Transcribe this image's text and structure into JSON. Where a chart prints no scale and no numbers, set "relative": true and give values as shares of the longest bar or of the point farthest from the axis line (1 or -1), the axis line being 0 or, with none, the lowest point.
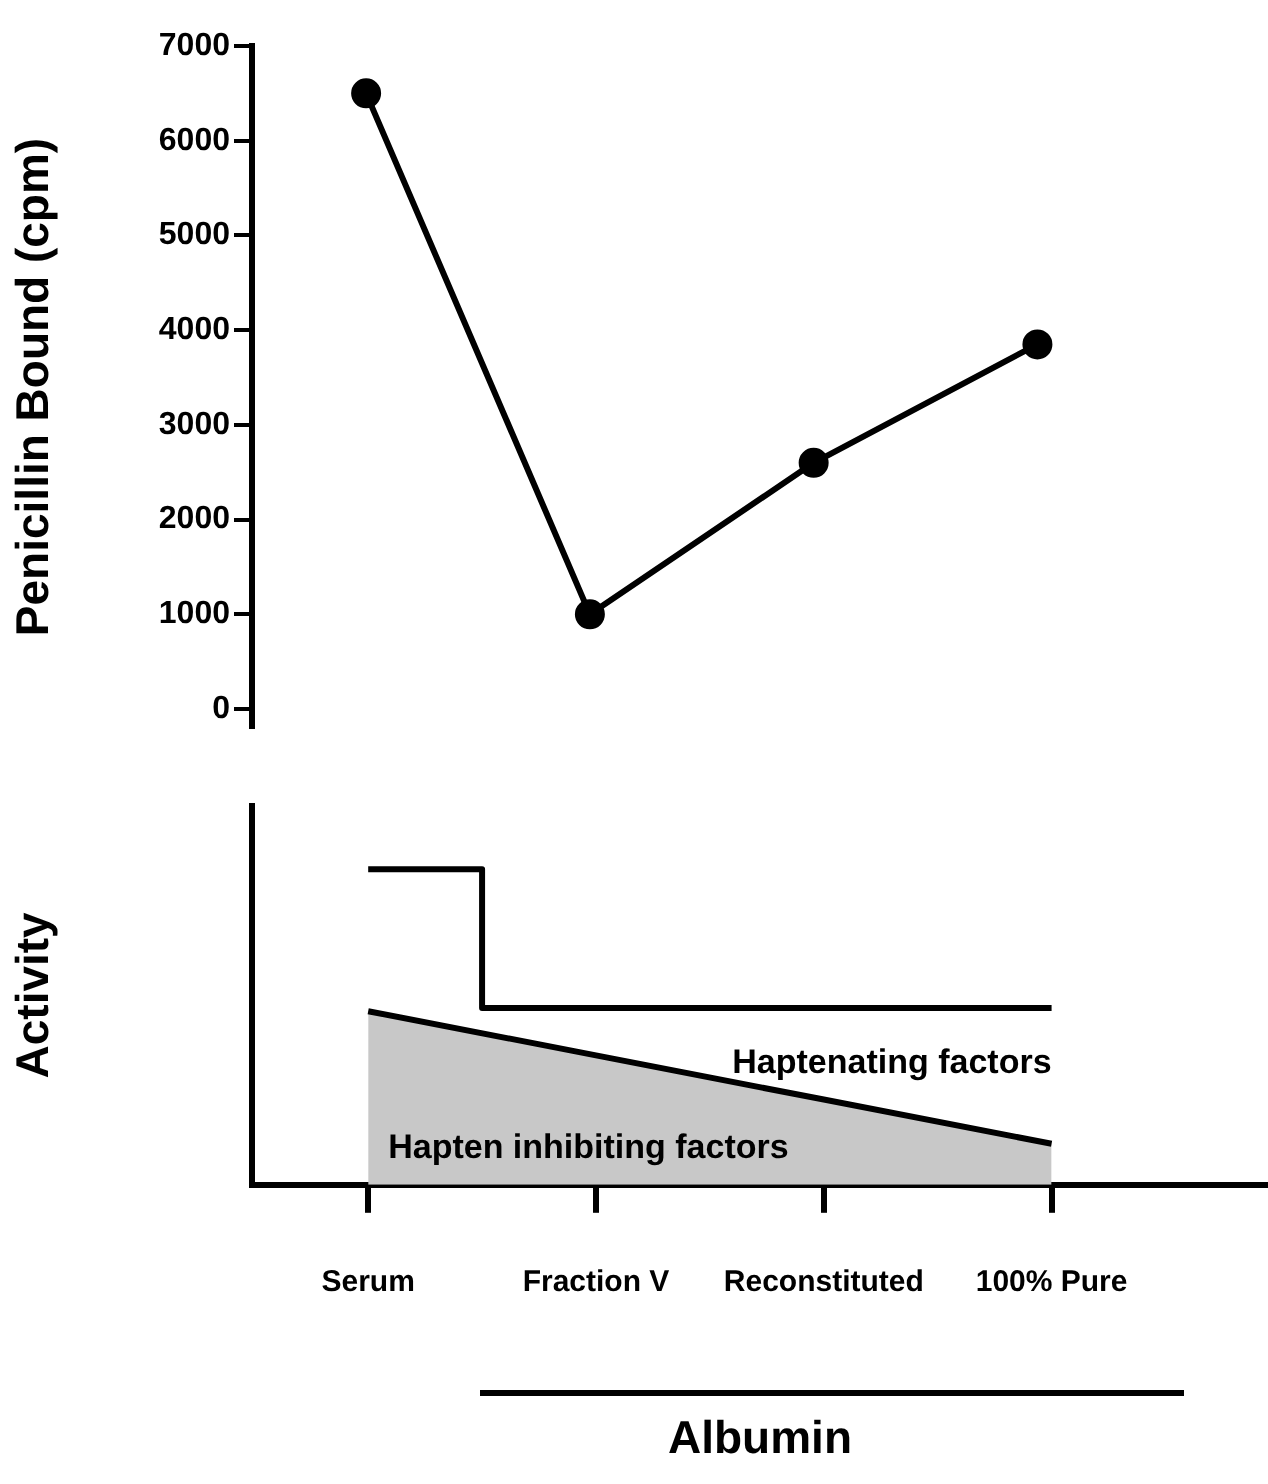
{
  "chart_data": [
    {
      "type": "line",
      "ylabel": "Penicillin Bound (cpm)",
      "categories": [
        null,
        null,
        null,
        null
      ],
      "ylim": [
        -200,
        7000
      ],
      "yticks": [
        0,
        1000,
        2000,
        3000,
        4000,
        5000,
        6000,
        7000
      ],
      "tick_labels": "y",
      "marker": "circle",
      "grid": false,
      "series": [
        {
          "color": "#000000",
          "values": [
            6500,
            1000,
            2600,
            3850
          ]
        }
      ]
    },
    {
      "type": "area",
      "ylabel": "Activity",
      "xlabel": "Albumin",
      "relative": true,
      "categories": [
        "Serum",
        "Fraction V",
        "Reconstituted",
        "100% Pure"
      ],
      "grid": false,
      "series": [
        {
          "name": "Haptenating factors",
          "type": "step",
          "color": "#000000",
          "values": [
            1,
            0.56,
            0.56,
            0.56
          ]
        },
        {
          "name": "Hapten inhibiting factors",
          "color": "#c8c8c8",
          "values": [
            0.55,
            0.41,
            0.27,
            0.13
          ]
        }
      ]
    }
  ]
}
